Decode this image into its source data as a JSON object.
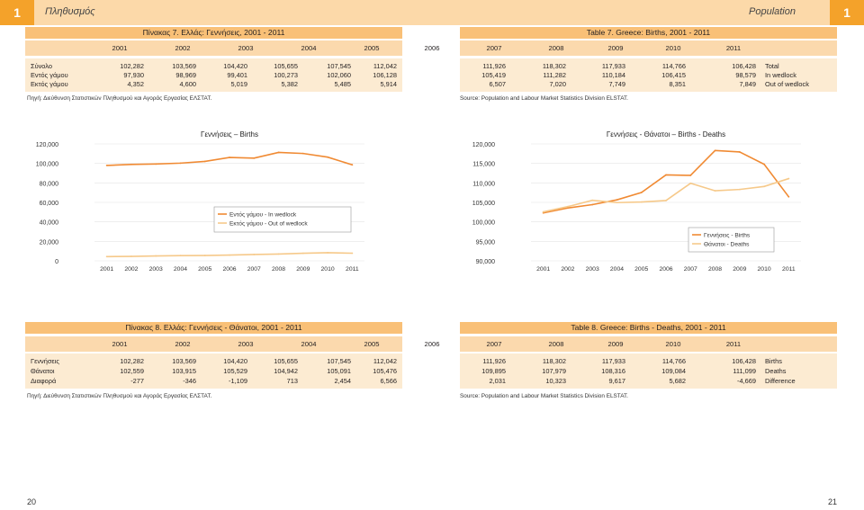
{
  "header": {
    "left_tab": "1",
    "left_title": "Πληθυσμός",
    "right_title": "Population",
    "right_tab": "1"
  },
  "table7": {
    "left_title": "Πίνακας 7. Ελλάς: Γεννήσεις, 2001 - 2011",
    "right_title": "Table 7. Greece: Births, 2001 - 2011",
    "left_years": [
      "2001",
      "2002",
      "2003",
      "2004",
      "2005",
      "2006"
    ],
    "right_years": [
      "2007",
      "2008",
      "2009",
      "2010",
      "2011"
    ],
    "left_rows": [
      {
        "label": "Σύνολο",
        "values": [
          "102,282",
          "103,569",
          "104,420",
          "105,655",
          "107,545",
          "112,042"
        ]
      },
      {
        "label": "Εντός γάμου",
        "values": [
          "97,930",
          "98,969",
          "99,401",
          "100,273",
          "102,060",
          "106,128"
        ]
      },
      {
        "label": "Εκτός γάμου",
        "values": [
          "4,352",
          "4,600",
          "5,019",
          "5,382",
          "5,485",
          "5,914"
        ]
      }
    ],
    "right_rows": [
      {
        "label": "Total",
        "values": [
          "111,926",
          "118,302",
          "117,933",
          "114,766",
          "106,428"
        ]
      },
      {
        "label": "In wedlock",
        "values": [
          "105,419",
          "111,282",
          "110,184",
          "106,415",
          "98,579"
        ]
      },
      {
        "label": "Out of wedlock",
        "values": [
          "6,507",
          "7,020",
          "7,749",
          "8,351",
          "7,849"
        ]
      }
    ],
    "left_source": "Πηγή: Διεύθυνση Στατιστικών Πληθυσμού και Αγοράς Εργασίας ΕΛΣΤΑΤ.",
    "right_source": "Source: Population and Labour Market Statistics Division ELSTAT."
  },
  "table8": {
    "left_title": "Πίνακας 8. Ελλάς: Γεννήσεις - Θάνατοι, 2001 - 2011",
    "right_title": "Table 8. Greece: Births - Deaths, 2001 - 2011",
    "left_years": [
      "2001",
      "2002",
      "2003",
      "2004",
      "2005",
      "2006"
    ],
    "right_years": [
      "2007",
      "2008",
      "2009",
      "2010",
      "2011"
    ],
    "left_rows": [
      {
        "label": "Γεννήσεις",
        "values": [
          "102,282",
          "103,569",
          "104,420",
          "105,655",
          "107,545",
          "112,042"
        ]
      },
      {
        "label": "Θάνατοι",
        "values": [
          "102,559",
          "103,915",
          "105,529",
          "104,942",
          "105,091",
          "105,476"
        ]
      },
      {
        "label": "Διαφορά",
        "values": [
          "-277",
          "-346",
          "-1,109",
          "713",
          "2,454",
          "6,566"
        ]
      }
    ],
    "right_rows": [
      {
        "label": "Births",
        "values": [
          "111,926",
          "118,302",
          "117,933",
          "114,766",
          "106,428"
        ]
      },
      {
        "label": "Deaths",
        "values": [
          "109,895",
          "107,979",
          "108,316",
          "109,084",
          "111,099"
        ]
      },
      {
        "label": "Difference",
        "values": [
          "2,031",
          "10,323",
          "9,617",
          "5,682",
          "-4,669"
        ]
      }
    ],
    "left_source": "Πηγή: Διεύθυνση Στατιστικών Πληθυσμού και Αγοράς Εργασίας ΕΛΣΤΑΤ.",
    "right_source": "Source: Population and Labour Market Statistics Division ELSTAT."
  },
  "colors": {
    "births": "#f08a33",
    "secondary": "#f6c98a",
    "accent": "#f4a22a"
  },
  "chart_data": [
    {
      "type": "line",
      "title": "Γεννήσεις  – Births",
      "categories": [
        "2001",
        "2002",
        "2003",
        "2004",
        "2005",
        "2006",
        "2007",
        "2008",
        "2009",
        "2010",
        "2011"
      ],
      "ylim": [
        0,
        120000
      ],
      "yticks": [
        "0",
        "20,000",
        "40,000",
        "60,000",
        "80,000",
        "100,000",
        "120,000"
      ],
      "yticks_values": [
        0,
        20000,
        40000,
        60000,
        80000,
        100000,
        120000
      ],
      "series": [
        {
          "name": "Εντός γάμου - In wedlock",
          "values": [
            97930,
            98969,
            99401,
            100273,
            102060,
            106128,
            105419,
            111282,
            110184,
            106415,
            98579
          ]
        },
        {
          "name": "Εκτός γάμου - Out of wedlock",
          "values": [
            4352,
            4600,
            5019,
            5382,
            5485,
            5914,
            6507,
            7020,
            7749,
            8351,
            7849
          ]
        }
      ],
      "legend": "center"
    },
    {
      "type": "line",
      "title": "Γεννήσεις - Θάνατοι – Births - Deaths",
      "categories": [
        "2001",
        "2002",
        "2003",
        "2004",
        "2005",
        "2006",
        "2007",
        "2008",
        "2009",
        "2010",
        "2011"
      ],
      "ylim": [
        90000,
        120000
      ],
      "yticks": [
        "90,000",
        "95,000",
        "100,000",
        "105,000",
        "110,000",
        "115,000",
        "120,000"
      ],
      "yticks_values": [
        90000,
        95000,
        100000,
        105000,
        110000,
        115000,
        120000
      ],
      "series": [
        {
          "name": "Γεννήσεις - Births",
          "values": [
            102282,
            103569,
            104420,
            105655,
            107545,
            112042,
            111926,
            118302,
            117933,
            114766,
            106428
          ]
        },
        {
          "name": "Θάνατοι - Deaths",
          "values": [
            102559,
            103915,
            105529,
            104942,
            105091,
            105476,
            109895,
            107979,
            108316,
            109084,
            111099
          ]
        }
      ],
      "legend": "bottom-right"
    }
  ],
  "pages": {
    "left": "20",
    "right": "21"
  }
}
